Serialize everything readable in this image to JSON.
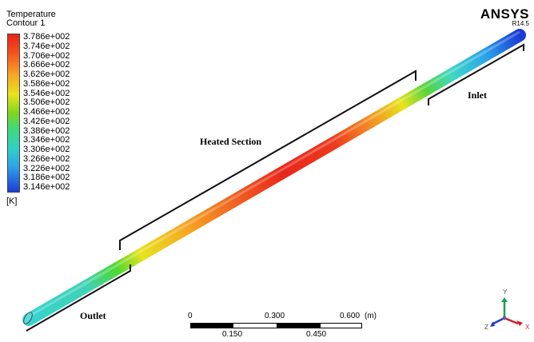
{
  "legend": {
    "title": "Temperature",
    "subtitle": "Contour 1",
    "ticks": [
      "3.786e+002",
      "3.746e+002",
      "3.706e+002",
      "3.666e+002",
      "3.626e+002",
      "3.586e+002",
      "3.546e+002",
      "3.506e+002",
      "3.466e+002",
      "3.426e+002",
      "3.386e+002",
      "3.346e+002",
      "3.306e+002",
      "3.266e+002",
      "3.226e+002",
      "3.186e+002",
      "3.146e+002"
    ],
    "unit": "[K]"
  },
  "brand": {
    "name": "ANSYS",
    "version": "R14.5"
  },
  "labels": {
    "heated": "Heated Section",
    "inlet": "Inlet",
    "outlet": "Outlet"
  },
  "scale": {
    "top_labels": [
      "0",
      "0.300",
      "0.600"
    ],
    "bottom_labels": [
      "0.150",
      "0.450"
    ],
    "unit": "(m)"
  },
  "axes": {
    "x": "X",
    "y": "Y",
    "z": "Z"
  },
  "colors": {
    "hot": "#e8231a",
    "cold": "#1e3bd6",
    "mid": "#7fd61f"
  }
}
